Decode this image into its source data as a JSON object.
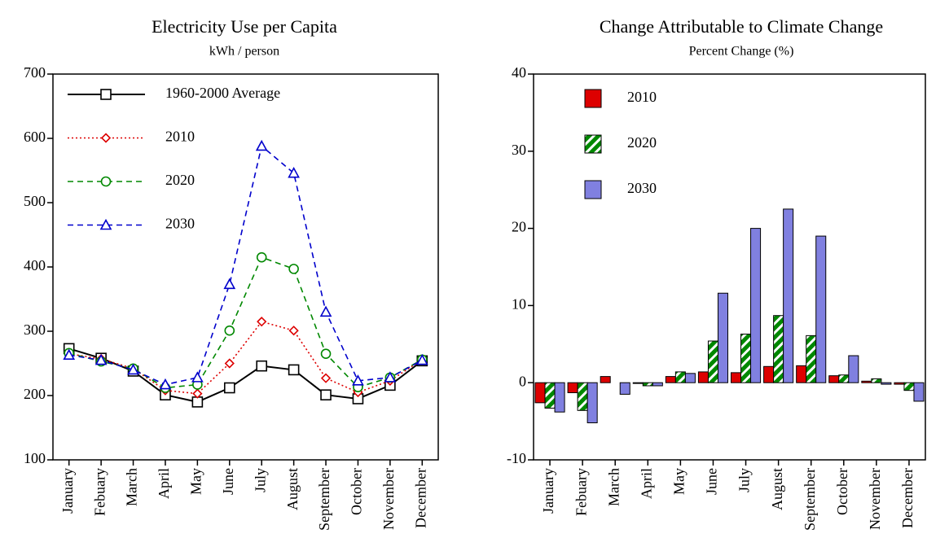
{
  "chart_data": [
    {
      "type": "line",
      "title": "Electricity Use per Capita",
      "subtitle": "kWh / person",
      "categories": [
        "January",
        "Febuary",
        "March",
        "April",
        "May",
        "June",
        "July",
        "August",
        "September",
        "October",
        "November",
        "December"
      ],
      "series": [
        {
          "name": "1960-2000  Average",
          "color": "#000000",
          "marker": "square",
          "dash": "solid",
          "values": [
            273,
            258,
            238,
            201,
            190,
            212,
            246,
            240,
            201,
            195,
            216,
            254
          ]
        },
        {
          "name": "2010",
          "color": "#dd0000",
          "marker": "diamond",
          "dash": "dotted",
          "values": [
            265,
            257,
            242,
            208,
            203,
            250,
            315,
            301,
            227,
            205,
            223,
            256
          ]
        },
        {
          "name": "2020",
          "color": "#008800",
          "marker": "circle",
          "dash": "dashed",
          "values": [
            266,
            253,
            242,
            212,
            217,
            301,
            415,
            397,
            265,
            213,
            228,
            256
          ]
        },
        {
          "name": "2030",
          "color": "#0000cc",
          "marker": "triangle",
          "dash": "dashed",
          "values": [
            263,
            255,
            240,
            217,
            228,
            373,
            588,
            546,
            330,
            223,
            228,
            255
          ]
        }
      ],
      "ylim": [
        100,
        700
      ],
      "yticks": [
        100,
        200,
        300,
        400,
        500,
        600,
        700
      ],
      "legend": "top-left"
    },
    {
      "type": "bar",
      "title": "Change Attributable to Climate Change",
      "subtitle": "Percent Change (%)",
      "categories": [
        "January",
        "Febuary",
        "March",
        "April",
        "May",
        "June",
        "July",
        "August",
        "September",
        "October",
        "November",
        "December"
      ],
      "series": [
        {
          "name": "2010",
          "color": "#dd0000",
          "pattern": "solid",
          "values": [
            -2.6,
            -1.3,
            0.8,
            -0.1,
            0.8,
            1.4,
            1.3,
            2.1,
            2.2,
            0.9,
            0.2,
            -0.2
          ]
        },
        {
          "name": "2020",
          "color": "#008800",
          "pattern": "hatch",
          "values": [
            -3.3,
            -3.6,
            0,
            -0.4,
            1.4,
            5.4,
            6.3,
            8.7,
            6.1,
            1.0,
            0.5,
            -1.0
          ]
        },
        {
          "name": "2030",
          "color": "#8080e0",
          "pattern": "solid",
          "values": [
            -3.8,
            -5.2,
            -1.5,
            -0.4,
            1.2,
            11.6,
            20.0,
            22.5,
            19.0,
            3.5,
            -0.2,
            -2.4
          ]
        }
      ],
      "ylim": [
        -10,
        40
      ],
      "yticks": [
        -10,
        0,
        10,
        20,
        30,
        40
      ],
      "legend": "top-left"
    }
  ]
}
